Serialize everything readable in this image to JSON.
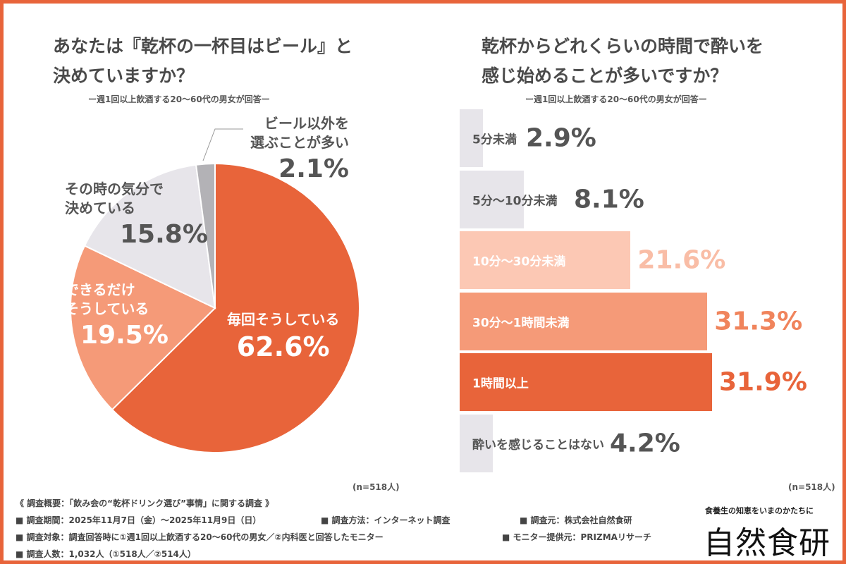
{
  "chart_data": [
    {
      "type": "pie",
      "title": "あなたは『乾杯の一杯目はビール』と決めていますか？",
      "subtitle": "ー週1回以上飲酒する20〜60代の男女が回答ー",
      "n": "(n=518人)",
      "slices": [
        {
          "label": "毎回そうしている",
          "value": 62.6,
          "display": "62.6%",
          "color": "#E8643A"
        },
        {
          "label": "できるだけそうしている",
          "value": 19.5,
          "display": "19.5%",
          "color": "#F59A78"
        },
        {
          "label": "その時の気分で決めている",
          "value": 15.8,
          "display": "15.8%",
          "color": "#E7E5EA"
        },
        {
          "label": "ビール以外を選ぶことが多い",
          "value": 2.1,
          "display": "2.1%",
          "color": "#B3B2B6"
        }
      ]
    },
    {
      "type": "bar",
      "orientation": "horizontal",
      "title": "乾杯からどれくらいの時間で酔いを感じ始めることが多いですか？",
      "subtitle": "ー週1回以上飲酒する20〜60代の男女が回答ー",
      "n": "(n=518人)",
      "categories": [
        "5分未満",
        "5分〜10分未満",
        "10分〜30分未満",
        "30分〜1時間未満",
        "1時間以上",
        "酔いを感じることはない"
      ],
      "values": [
        2.9,
        8.1,
        21.6,
        31.3,
        31.9,
        4.2
      ],
      "displays": [
        "2.9%",
        "8.1%",
        "21.6%",
        "31.3%",
        "31.9%",
        "4.2%"
      ],
      "colors": [
        "#E7E5EA",
        "#E7E5EA",
        "#FCC8B4",
        "#F59A78",
        "#E8643A",
        "#E7E5EA"
      ],
      "value_colors": [
        "#555555",
        "#555555",
        "#F9BDA6",
        "#F0845C",
        "#E8643A",
        "#555555"
      ],
      "label_colors": [
        "#555555",
        "#555555",
        "#ffffff",
        "#ffffff",
        "#ffffff",
        "#555555"
      ]
    }
  ],
  "left": {
    "title_lines": [
      "あなたは『乾杯の一杯目はビール』と",
      "決めていますか？"
    ]
  },
  "right": {
    "title_lines": [
      "乾杯からどれくらいの時間で酔いを",
      "感じ始めることが多いですか？"
    ]
  },
  "pie_labels": {
    "s0": [
      "毎回そうしている",
      "62.6%"
    ],
    "s1": [
      "できるだけ",
      "そうしている",
      "19.5%"
    ],
    "s2": [
      "その時の気分で",
      "決めている",
      "15.8%"
    ],
    "s3": [
      "ビール以外を",
      "選ぶことが多い",
      "2.1%"
    ]
  },
  "footer": {
    "overview": "《 調査概要：「飲み会の“乾杯ドリンク選び”事情」に関する調査 》",
    "period": "■ 調査期間：2025年11月7日（金）〜2025年11月9日（日）",
    "method": "■ 調査方法：インターネット調査",
    "source": "■ 調査元：株式会社自然食研",
    "target": "■ 調査対象：調査回答時に①週1回以上飲酒する20〜60代の男女／②内科医と回答したモニター",
    "provider": "■ モニター提供元：PRIZMAリサーチ",
    "count": "■ 調査人数：1,032人（①518人／②514人）"
  },
  "logo": {
    "tagline": "食養生の知恵をいまのかたちに",
    "name": "自然食研"
  }
}
